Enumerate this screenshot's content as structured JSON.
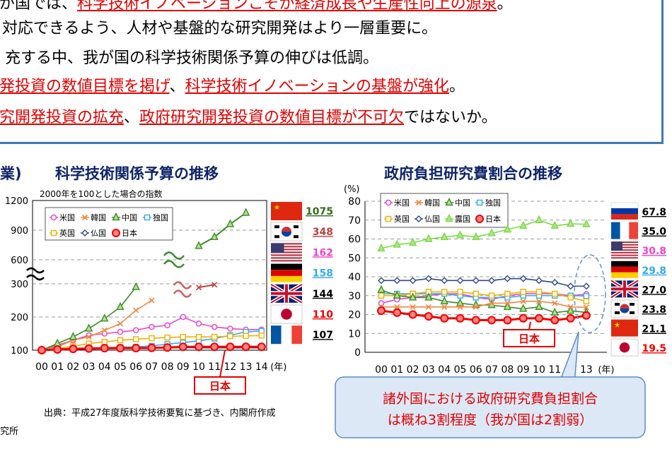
{
  "bullets": [
    {
      "parts": [
        {
          "t": "が国では、",
          "r": false
        },
        {
          "t": "科学技術イノベーションこそが経済成長や生産性向上の源泉",
          "r": true
        },
        {
          "t": "。",
          "r": false
        }
      ]
    },
    {
      "parts": [
        {
          "t": "対応できるよう、人材や基盤的な研究開発はより一層重要に。",
          "r": false
        }
      ]
    },
    {
      "parts": [
        {
          "t": "充する中、我が国の科学技術関係予算の伸びは低調。",
          "r": false
        }
      ]
    },
    {
      "parts": [
        {
          "t": "発投資の数値目標を掲げ",
          "r": true
        },
        {
          "t": "、",
          "r": false
        },
        {
          "t": "科学技術イノベーションの基盤が強化",
          "r": true
        },
        {
          "t": "。",
          "r": false
        }
      ]
    },
    {
      "parts": [
        {
          "t": "究開発投資の拡充",
          "r": true
        },
        {
          "t": "、",
          "r": false
        },
        {
          "t": "政府研究開発投資の数値目標が不可欠",
          "r": true
        },
        {
          "t": "ではないか。",
          "r": false
        }
      ]
    }
  ],
  "left_panel": {
    "title_fragment": "業)",
    "title": "科学技術関係予算の推移",
    "subtitle": "2000年を100とした場合の指数"
  },
  "right_panel": {
    "title": "政府負担研究費割合の推移"
  },
  "source_note": "出典：平成27年度版科学技術要覧に基づき、内閣府作成",
  "bottom_fragment": "究所",
  "callout": {
    "line1": "諸外国における政府研究費負担割合",
    "line2": "は概ね3割程度（我が国は2割弱）"
  },
  "chart_data": [
    {
      "type": "line",
      "title": "科学技術関係予算の推移",
      "subtitle": "2000年を100とした場合の指数",
      "x": [
        "00",
        "01",
        "02",
        "03",
        "04",
        "05",
        "06",
        "07",
        "08",
        "09",
        "10",
        "11",
        "12",
        "13",
        "14"
      ],
      "xlabel": "(年)",
      "yticks": [
        100,
        200,
        300,
        600,
        900,
        1200
      ],
      "ylim": [
        100,
        1200
      ],
      "axis_break": true,
      "japan_label": "日本",
      "legend": [
        "米国",
        "韓国",
        "中国",
        "独国",
        "英国",
        "仏国",
        "日本"
      ],
      "series": [
        {
          "name": "米国",
          "color": "#ee44cc",
          "marker": "circle-open",
          "values": [
            100,
            115,
            130,
            145,
            150,
            155,
            160,
            170,
            175,
            200,
            180,
            170,
            165,
            162,
            162
          ]
        },
        {
          "name": "韓国",
          "color": "#ee8844",
          "marker": "x",
          "values": [
            100,
            110,
            130,
            140,
            160,
            180,
            220,
            250,
            null,
            null,
            null,
            null,
            null,
            null,
            null
          ]
        },
        {
          "name": "中国",
          "color": "#3a8c28",
          "marker": "triangle",
          "values": [
            100,
            120,
            140,
            165,
            195,
            230,
            290,
            null,
            null,
            null,
            null,
            null,
            null,
            null,
            null
          ]
        },
        {
          "name": "独国",
          "color": "#33aaee",
          "marker": "square-open",
          "values": [
            100,
            101,
            103,
            105,
            107,
            109,
            110,
            113,
            118,
            123,
            128,
            135,
            145,
            155,
            158
          ]
        },
        {
          "name": "英国",
          "color": "#f0b000",
          "marker": "square-open",
          "values": [
            100,
            105,
            112,
            120,
            125,
            130,
            133,
            136,
            138,
            140,
            140,
            140,
            142,
            143,
            144
          ]
        },
        {
          "name": "仏国",
          "color": "#2e4a8a",
          "marker": "diamond",
          "values": [
            100,
            101,
            102,
            103,
            104,
            105,
            106,
            106,
            107,
            108,
            107,
            107,
            107,
            107,
            107
          ]
        },
        {
          "name": "日本",
          "color": "#ee0000",
          "marker": "circle-filled",
          "values": [
            100,
            102,
            104,
            105,
            106,
            106,
            106,
            107,
            108,
            110,
            110,
            110,
            110,
            110,
            110
          ]
        }
      ],
      "upper_segments": [
        {
          "name": "中国",
          "color": "#3a8c28",
          "marker": "triangle",
          "x": [
            "10",
            "11",
            "12",
            "13"
          ],
          "values": [
            740,
            830,
            960,
            1075
          ]
        },
        {
          "name": "韓国",
          "color": "#c04040",
          "marker": "x",
          "x": [
            "10",
            "11"
          ],
          "values": [
            320,
            348
          ]
        }
      ],
      "end_labels": [
        {
          "country": "中国",
          "value": "1075",
          "color": "#2e6e1c"
        },
        {
          "country": "韓国",
          "value": "348",
          "color": "#c04040"
        },
        {
          "country": "米国",
          "value": "162",
          "color": "#ee44cc"
        },
        {
          "country": "独国",
          "value": "158",
          "color": "#33aaee"
        },
        {
          "country": "英国",
          "value": "144",
          "color": "#000000"
        },
        {
          "country": "日本",
          "value": "110",
          "color": "#ee0000"
        },
        {
          "country": "仏国",
          "value": "107",
          "color": "#000000"
        }
      ]
    },
    {
      "type": "line",
      "title": "政府負担研究費割合の推移",
      "x": [
        "00",
        "01",
        "02",
        "03",
        "04",
        "05",
        "06",
        "07",
        "08",
        "09",
        "10",
        "11",
        "12",
        "13"
      ],
      "xlabel": "(年)",
      "ylabel": "(%)",
      "ylim": [
        0,
        80
      ],
      "yticks": [
        0,
        10,
        20,
        30,
        40,
        50,
        60,
        70,
        80
      ],
      "japan_label": "日本",
      "legend": [
        "米国",
        "韓国",
        "中国",
        "独国",
        "英国",
        "仏国",
        "露国",
        "日本"
      ],
      "series": [
        {
          "name": "露国",
          "color": "#77dd44",
          "marker": "triangle",
          "values": [
            55,
            57,
            58,
            60,
            61,
            62,
            61,
            63,
            65,
            67,
            70,
            67,
            68,
            67.8
          ]
        },
        {
          "name": "仏国",
          "color": "#2e4a8a",
          "marker": "diamond",
          "values": [
            38,
            38,
            38,
            39,
            38,
            38,
            38,
            38,
            39,
            39,
            38,
            37,
            35,
            35
          ]
        },
        {
          "name": "米国",
          "color": "#ee44cc",
          "marker": "circle-open",
          "values": [
            26,
            28,
            29,
            30,
            31,
            31,
            29,
            28,
            30,
            31,
            31,
            31,
            30,
            30.8
          ]
        },
        {
          "name": "独国",
          "color": "#33aaee",
          "marker": "square-open",
          "values": [
            31,
            31,
            31,
            31,
            31,
            30,
            29,
            29,
            29,
            30,
            30,
            30,
            30,
            29.8
          ]
        },
        {
          "name": "英国",
          "color": "#f0b000",
          "marker": "square-open",
          "values": [
            30,
            30,
            31,
            32,
            32,
            32,
            31,
            30,
            31,
            32,
            32,
            31,
            29,
            27.0
          ]
        },
        {
          "name": "中国",
          "color": "#3a8c28",
          "marker": "triangle",
          "values": [
            33,
            30,
            29,
            29,
            27,
            26,
            25,
            25,
            24,
            23,
            24,
            21,
            22,
            21.1
          ]
        },
        {
          "name": "韓国",
          "color": "#ee8844",
          "marker": "x",
          "values": [
            24,
            24,
            24,
            24,
            24,
            24,
            24,
            26,
            26,
            27,
            27,
            26,
            24,
            23.8
          ]
        },
        {
          "name": "日本",
          "color": "#ee0000",
          "marker": "circle-filled",
          "values": [
            22,
            21,
            20,
            19,
            18,
            18,
            17,
            17,
            17,
            18,
            18,
            17,
            18,
            19.5
          ]
        }
      ],
      "end_labels": [
        {
          "country": "露国",
          "value": "67.8",
          "color": "#000000"
        },
        {
          "country": "仏国",
          "value": "35.0",
          "color": "#000000"
        },
        {
          "country": "米国",
          "value": "30.8",
          "color": "#ee44cc"
        },
        {
          "country": "独国",
          "value": "29.8",
          "color": "#33aaee"
        },
        {
          "country": "英国",
          "value": "27.0",
          "color": "#000000"
        },
        {
          "country": "韓国",
          "value": "23.8",
          "color": "#000000"
        },
        {
          "country": "中国",
          "value": "21.1",
          "color": "#000000"
        },
        {
          "country": "日本",
          "value": "19.5",
          "color": "#ee0000"
        }
      ]
    }
  ]
}
